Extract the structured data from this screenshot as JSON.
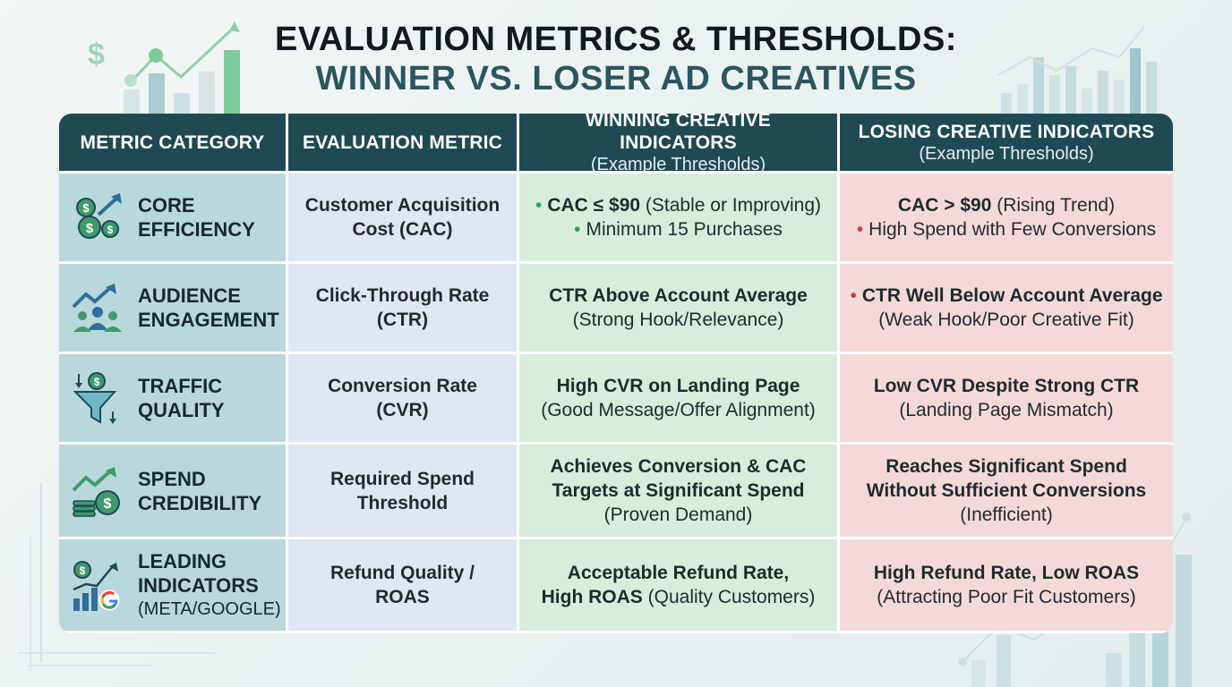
{
  "title": {
    "line1": "EVALUATION METRICS & THRESHOLDS:",
    "line2": "WINNER VS. LOSER AD CREATIVES"
  },
  "header": {
    "col1": "METRIC CATEGORY",
    "col2": "EVALUATION METRIC",
    "col3": "WINNING CREATIVE INDICATORS",
    "col3_sub": "(Example Thresholds)",
    "col4": "LOSING CREATIVE INDICATORS",
    "col4_sub": "(Example Thresholds)"
  },
  "rows": [
    {
      "icon": "money-growth-icon",
      "category": [
        "CORE",
        "EFFICIENCY"
      ],
      "metric": [
        "Customer Acquisition",
        "Cost (CAC)"
      ],
      "win": [
        {
          "bullet": true,
          "bold": "CAC ≤ $90",
          "rest": " (Stable or Improving)"
        },
        {
          "bullet": true,
          "bold": "",
          "rest": "Minimum 15 Purchases"
        }
      ],
      "lose": [
        {
          "bullet": false,
          "bold": "CAC > $90",
          "rest": " (Rising Trend)"
        },
        {
          "bullet": true,
          "bold": "",
          "rest": "High Spend with Few Conversions"
        }
      ]
    },
    {
      "icon": "audience-growth-icon",
      "category": [
        "AUDIENCE",
        "ENGAGEMENT"
      ],
      "metric": [
        "Click-Through Rate",
        "(CTR)"
      ],
      "win": [
        {
          "bullet": false,
          "bold": "CTR Above Account Average",
          "rest": ""
        },
        {
          "bullet": false,
          "bold": "",
          "rest": "(Strong Hook/Relevance)"
        }
      ],
      "lose": [
        {
          "bullet": true,
          "bold": "CTR Well Below Account Average",
          "rest": ""
        },
        {
          "bullet": false,
          "bold": "",
          "rest": "(Weak Hook/Poor Creative Fit)"
        }
      ]
    },
    {
      "icon": "funnel-icon",
      "category": [
        "TRAFFIC",
        "QUALITY"
      ],
      "metric": [
        "Conversion Rate",
        "(CVR)"
      ],
      "win": [
        {
          "bullet": false,
          "bold": "High CVR on Landing Page",
          "rest": ""
        },
        {
          "bullet": false,
          "bold": "",
          "rest": "(Good Message/Offer Alignment)"
        }
      ],
      "lose": [
        {
          "bullet": false,
          "bold": "Low CVR Despite Strong CTR",
          "rest": ""
        },
        {
          "bullet": false,
          "bold": "",
          "rest": "(Landing Page Mismatch)"
        }
      ]
    },
    {
      "icon": "coins-trend-icon",
      "category": [
        "SPEND",
        "CREDIBILITY"
      ],
      "metric": [
        "Required Spend",
        "Threshold"
      ],
      "win": [
        {
          "bullet": false,
          "bold": "Achieves Conversion & CAC",
          "rest": ""
        },
        {
          "bullet": false,
          "bold": "Targets at Significant Spend",
          "rest": ""
        },
        {
          "bullet": false,
          "bold": "",
          "rest": "(Proven Demand)"
        }
      ],
      "lose": [
        {
          "bullet": false,
          "bold": "Reaches Significant Spend",
          "rest": ""
        },
        {
          "bullet": false,
          "bold": "Without Sufficient Conversions",
          "rest": ""
        },
        {
          "bullet": false,
          "bold": "",
          "rest": "(Inefficient)"
        }
      ]
    },
    {
      "icon": "chart-google-icon",
      "category": [
        "LEADING",
        "INDICATORS"
      ],
      "category_sub": "(META/GOOGLE)",
      "metric": [
        "Refund Quality /",
        "ROAS"
      ],
      "win": [
        {
          "bullet": false,
          "bold": "Acceptable Refund Rate,",
          "rest": ""
        },
        {
          "bullet": false,
          "bold": "High ROAS",
          "rest": " (Quality Customers)"
        }
      ],
      "lose": [
        {
          "bullet": false,
          "bold": "High Refund Rate, Low ROAS",
          "rest": ""
        },
        {
          "bullet": false,
          "bold": "",
          "rest": "(Attracting Poor Fit Customers)"
        }
      ]
    }
  ],
  "colors": {
    "header_bg": "#1f4a54",
    "category_bg": "#b9d8dc",
    "metric_bg": "#dfe7f3",
    "win_bg": "#d6eedb",
    "lose_bg": "#f5d9d9",
    "win_bullet": "#2fa556",
    "lose_bullet": "#d33b3b"
  }
}
